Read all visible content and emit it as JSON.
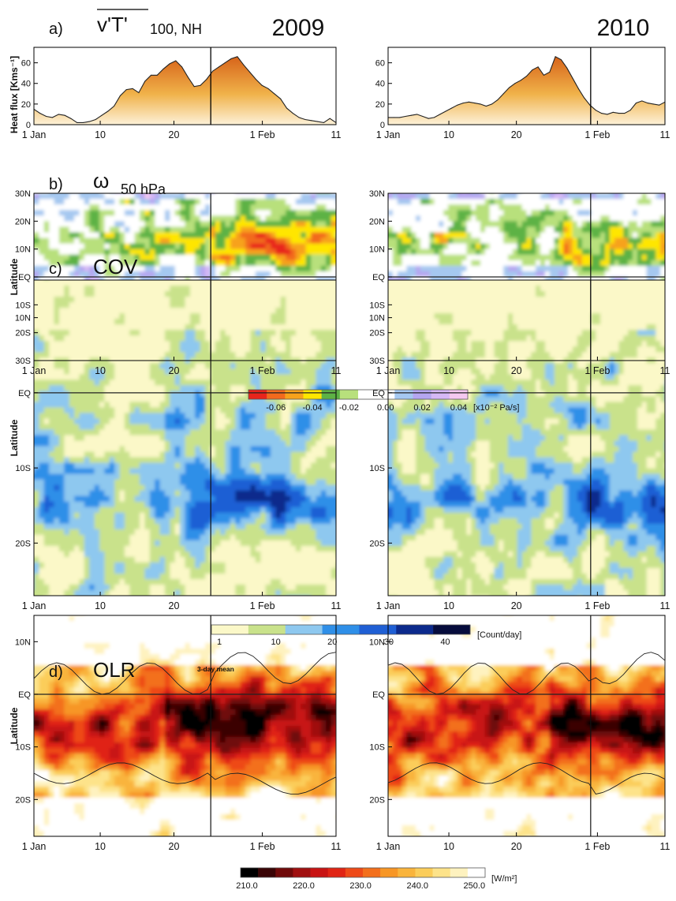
{
  "chart_data": [
    {
      "type": "area",
      "panel": "a)",
      "title": "v'T'",
      "title_suffix": "100, NH",
      "ylabel": "Heat flux [Kms⁻¹]",
      "x_ticks": [
        "1 Jan",
        "10",
        "20",
        "1 Feb",
        "11"
      ],
      "y_ticks": [
        "0",
        "20",
        "40",
        "60"
      ],
      "ylim": [
        0,
        75
      ],
      "series": [
        {
          "year": "2009",
          "ssw_day": 24,
          "values": [
            15,
            11,
            8,
            7,
            10,
            9,
            6,
            2,
            2,
            3,
            5,
            9,
            13,
            18,
            28,
            34,
            35,
            31,
            42,
            48,
            48,
            54,
            59,
            62,
            56,
            46,
            37,
            38,
            44,
            52,
            56,
            60,
            64,
            66,
            58,
            51,
            44,
            38,
            35,
            30,
            25,
            16,
            11,
            7,
            5,
            4,
            3,
            2,
            6,
            2
          ]
        },
        {
          "year": "2010",
          "ssw_day": 30,
          "values": [
            7,
            7,
            7,
            8,
            9,
            10,
            8,
            6,
            7,
            10,
            13,
            16,
            19,
            21,
            22,
            21,
            20,
            18,
            20,
            24,
            30,
            36,
            40,
            43,
            47,
            53,
            56,
            48,
            51,
            66,
            63,
            55,
            45,
            35,
            26,
            19,
            14,
            11,
            10,
            12,
            11,
            11,
            14,
            21,
            23,
            21,
            20,
            19,
            22
          ]
        }
      ]
    },
    {
      "type": "heatmap",
      "panel": "b)",
      "title": "ω",
      "title_suffix": "50 hPa",
      "ylabel": "Latitude",
      "y_ticks": [
        "30N",
        "20N",
        "10N",
        "EQ",
        "10S",
        "20S",
        "30S"
      ],
      "x_ticks": [
        "1 Jan",
        "10",
        "20",
        "1 Feb",
        "11"
      ],
      "colorbar": {
        "ticks": [
          "-0.06",
          "-0.04",
          "-0.02",
          "0.00",
          "0.02",
          "0.04"
        ],
        "unit": "[x10⁻² Pa/s]",
        "colors": [
          "#e8251c",
          "#f26a1d",
          "#f7a21b",
          "#ffe600",
          "#5db245",
          "#b8e07c",
          "#ffffff",
          "#ffffff",
          "#a5c8f0",
          "#b5a6f0",
          "#d6b8f5",
          "#f5c8f0"
        ]
      }
    },
    {
      "type": "heatmap",
      "panel": "c)",
      "title": "COV",
      "ylabel": "Latitude",
      "y_ticks": [
        "10N",
        "EQ",
        "10S",
        "20S"
      ],
      "x_ticks": [
        "1 Jan",
        "10",
        "20",
        "1 Feb",
        "11"
      ],
      "colorbar": {
        "ticks": [
          "1",
          "10",
          "20",
          "30",
          "40"
        ],
        "unit": "[Count/day]",
        "colors": [
          "#fbf8c8",
          "#c9e28b",
          "#8ec8ef",
          "#2f8fe8",
          "#1f5fd4",
          "#0c2a8c",
          "#060c3c"
        ]
      }
    },
    {
      "type": "heatmap",
      "panel": "d)",
      "title": "OLR",
      "annotation": "3-day mean",
      "ylabel": "Latitude",
      "y_ticks": [
        "10N",
        "EQ",
        "10S",
        "20S"
      ],
      "x_ticks": [
        "1 Jan",
        "10",
        "20",
        "1 Feb",
        "11"
      ],
      "colorbar": {
        "ticks": [
          "210.0",
          "220.0",
          "230.0",
          "240.0",
          "250.0"
        ],
        "unit": "[W/m²]",
        "colors": [
          "#000000",
          "#3a0506",
          "#700a0a",
          "#a01010",
          "#c81313",
          "#e02414",
          "#ee4a18",
          "#f36f1c",
          "#f79625",
          "#f9b43c",
          "#fbcd5a",
          "#fde38a",
          "#fef2bf",
          "#ffffff"
        ]
      }
    }
  ]
}
